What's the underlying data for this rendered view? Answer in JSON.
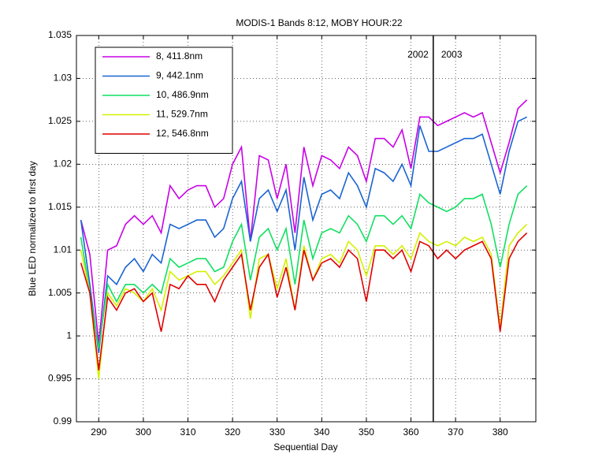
{
  "chart_data": {
    "type": "line",
    "title": "MODIS-1 Bands 8:12, MOBY HOUR:22",
    "xlabel": "Sequential Day",
    "ylabel": "Blue LED normalized to first day",
    "x": [
      286,
      288,
      290,
      292,
      294,
      296,
      298,
      300,
      302,
      304,
      306,
      308,
      310,
      312,
      314,
      316,
      318,
      320,
      322,
      324,
      326,
      328,
      330,
      332,
      334,
      336,
      338,
      340,
      342,
      344,
      346,
      348,
      350,
      352,
      354,
      356,
      358,
      360,
      362,
      364,
      366,
      368,
      370,
      372,
      374,
      376,
      378,
      380,
      382,
      384,
      386
    ],
    "series": [
      {
        "name": "8, 411.8nm",
        "color": "#c800e6",
        "values": [
          1.0135,
          1.0095,
          0.999,
          1.01,
          1.0105,
          1.013,
          1.014,
          1.013,
          1.014,
          1.012,
          1.0175,
          1.016,
          1.017,
          1.0175,
          1.0175,
          1.015,
          1.016,
          1.02,
          1.022,
          1.011,
          1.021,
          1.0205,
          1.016,
          1.02,
          1.012,
          1.022,
          1.0175,
          1.021,
          1.0205,
          1.0195,
          1.022,
          1.021,
          1.018,
          1.023,
          1.023,
          1.022,
          1.024,
          1.0195,
          1.0255,
          1.0255,
          1.0245,
          1.025,
          1.0255,
          1.026,
          1.0255,
          1.026,
          1.0225,
          1.019,
          1.0225,
          1.0265,
          1.0275
        ]
      },
      {
        "name": "9, 442.1nm",
        "color": "#1a64d2",
        "values": [
          1.0135,
          1.006,
          0.998,
          1.007,
          1.006,
          1.008,
          1.009,
          1.0075,
          1.0095,
          1.0085,
          1.013,
          1.0125,
          1.013,
          1.0135,
          1.0135,
          1.0115,
          1.0125,
          1.016,
          1.018,
          1.011,
          1.016,
          1.017,
          1.0145,
          1.017,
          1.01,
          1.0185,
          1.0135,
          1.0165,
          1.017,
          1.016,
          1.019,
          1.0175,
          1.015,
          1.0195,
          1.019,
          1.018,
          1.02,
          1.0175,
          1.0245,
          1.0215,
          1.0215,
          1.022,
          1.0225,
          1.023,
          1.023,
          1.0235,
          1.02,
          1.0165,
          1.0215,
          1.025,
          1.0255
        ]
      },
      {
        "name": "10, 486.9nm",
        "color": "#10e060",
        "values": [
          1.0115,
          1.005,
          0.9985,
          1.006,
          1.004,
          1.006,
          1.006,
          1.005,
          1.006,
          1.005,
          1.009,
          1.008,
          1.0085,
          1.009,
          1.009,
          1.0075,
          1.008,
          1.011,
          1.013,
          1.0065,
          1.0115,
          1.0125,
          1.01,
          1.0125,
          1.006,
          1.0135,
          1.009,
          1.012,
          1.0125,
          1.012,
          1.014,
          1.013,
          1.011,
          1.014,
          1.014,
          1.013,
          1.014,
          1.0125,
          1.0165,
          1.0155,
          1.015,
          1.0145,
          1.015,
          1.016,
          1.016,
          1.0165,
          1.013,
          1.008,
          1.013,
          1.0165,
          1.0175
        ]
      },
      {
        "name": "11, 529.7nm",
        "color": "#d4f000",
        "values": [
          1.01,
          1.005,
          0.995,
          1.005,
          1.0035,
          1.0055,
          1.005,
          1.004,
          1.0055,
          1.003,
          1.0075,
          1.0065,
          1.007,
          1.0075,
          1.0075,
          1.006,
          1.007,
          1.0085,
          1.01,
          1.002,
          1.009,
          1.0095,
          1.0055,
          1.009,
          1.003,
          1.0105,
          1.0065,
          1.009,
          1.0095,
          1.0085,
          1.011,
          1.01,
          1.007,
          1.0105,
          1.0105,
          1.0095,
          1.0105,
          1.009,
          1.012,
          1.011,
          1.0105,
          1.011,
          1.0105,
          1.0115,
          1.011,
          1.0115,
          1.0095,
          1.001,
          1.0105,
          1.012,
          1.013
        ]
      },
      {
        "name": "12, 546.8nm",
        "color": "#e00000",
        "values": [
          1.0085,
          1.005,
          0.996,
          1.0045,
          1.003,
          1.005,
          1.0055,
          1.004,
          1.005,
          1.0005,
          1.006,
          1.0055,
          1.007,
          1.006,
          1.006,
          1.004,
          1.0065,
          1.008,
          1.0095,
          1.003,
          1.008,
          1.0095,
          1.0045,
          1.008,
          1.003,
          1.01,
          1.0065,
          1.0085,
          1.009,
          1.008,
          1.01,
          1.009,
          1.004,
          1.01,
          1.01,
          1.009,
          1.01,
          1.0075,
          1.011,
          1.0105,
          1.009,
          1.01,
          1.009,
          1.01,
          1.0105,
          1.011,
          1.009,
          1.0005,
          1.009,
          1.011,
          1.012
        ]
      }
    ],
    "xlim": [
      285,
      388
    ],
    "ylim": [
      0.99,
      1.035
    ],
    "xticks": [
      290,
      300,
      310,
      320,
      330,
      340,
      350,
      360,
      370,
      380
    ],
    "yticks": [
      0.99,
      0.995,
      1,
      1.005,
      1.01,
      1.015,
      1.02,
      1.025,
      1.03,
      1.035
    ],
    "grid": true,
    "legend": "upper left",
    "vline": 365,
    "annotations": [
      "2002",
      "2003"
    ]
  }
}
